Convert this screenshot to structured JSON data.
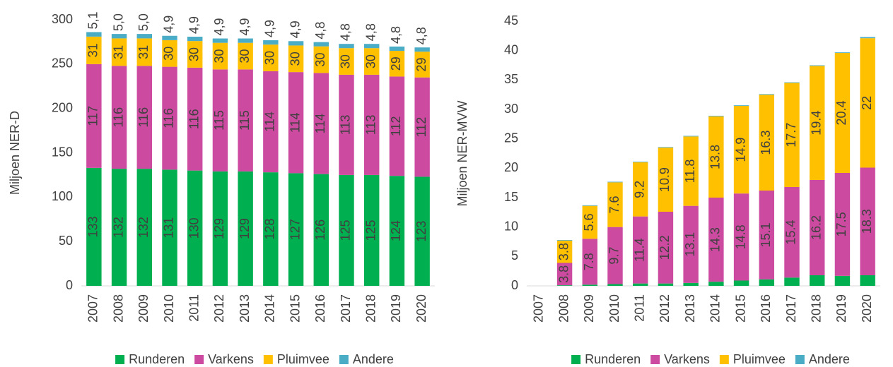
{
  "chart_data": [
    {
      "type": "bar",
      "stacked": true,
      "y_label": "Miljoen NER-D",
      "categories": [
        "2007",
        "2008",
        "2009",
        "2010",
        "2011",
        "2012",
        "2013",
        "2014",
        "2015",
        "2016",
        "2017",
        "2018",
        "2019",
        "2020"
      ],
      "ylim": [
        0,
        300
      ],
      "yticks": [
        0,
        50,
        100,
        150,
        200,
        250,
        300
      ],
      "grid": false,
      "legend": "bottom",
      "series": [
        {
          "name": "Runderen",
          "color": "#00b050",
          "show_labels": true,
          "label_position": "center",
          "values": [
            133,
            132,
            132,
            131,
            130,
            129,
            129,
            128,
            127,
            126,
            125,
            125,
            124,
            123
          ]
        },
        {
          "name": "Varkens",
          "color": "#cc4aa0",
          "show_labels": true,
          "label_position": "center",
          "values": [
            117,
            116,
            116,
            116,
            116,
            115,
            115,
            114,
            114,
            114,
            113,
            113,
            112,
            112
          ]
        },
        {
          "name": "Pluimvee",
          "color": "#ffc000",
          "show_labels": true,
          "label_position": "center",
          "values": [
            31,
            31,
            31,
            30,
            30,
            30,
            30,
            30,
            30,
            30,
            30,
            30,
            29,
            29
          ]
        },
        {
          "name": "Andere",
          "color": "#4bacc6",
          "show_labels": true,
          "label_position": "above",
          "values": [
            5.1,
            5.0,
            5.0,
            4.9,
            4.9,
            4.9,
            4.9,
            4.9,
            4.9,
            4.8,
            4.8,
            4.8,
            4.8,
            4.8
          ],
          "value_labels": [
            "5,1",
            "5,0",
            "5,0",
            "4,9",
            "4,9",
            "4,9",
            "4,9",
            "4,9",
            "4,9",
            "4,8",
            "4,8",
            "4,8",
            "4,8",
            "4,8"
          ]
        }
      ]
    },
    {
      "type": "bar",
      "stacked": true,
      "y_label": "Miljoen NER-MVW",
      "categories": [
        "2007",
        "2008",
        "2009",
        "2010",
        "2011",
        "2012",
        "2013",
        "2014",
        "2015",
        "2016",
        "2017",
        "2018",
        "2019",
        "2020"
      ],
      "ylim": [
        0,
        45
      ],
      "yticks": [
        0,
        5,
        10,
        15,
        20,
        25,
        30,
        35,
        40,
        45
      ],
      "grid": false,
      "legend": "bottom",
      "series": [
        {
          "name": "Runderen",
          "color": "#00b050",
          "show_labels": false,
          "label_position": "center",
          "values": [
            null,
            0.1,
            0.2,
            0.3,
            0.4,
            0.4,
            0.5,
            0.7,
            0.9,
            1.1,
            1.4,
            1.8,
            1.7,
            1.8
          ]
        },
        {
          "name": "Varkens",
          "color": "#cc4aa0",
          "show_labels": true,
          "label_position": "center",
          "values": [
            null,
            3.8,
            7.8,
            9.7,
            11.4,
            12.2,
            13.1,
            14.3,
            14.8,
            15.1,
            15.4,
            16.2,
            17.5,
            18.3
          ]
        },
        {
          "name": "Pluimvee",
          "color": "#ffc000",
          "show_labels": true,
          "label_position": "center",
          "values": [
            null,
            3.8,
            5.6,
            7.6,
            9.2,
            10.9,
            11.8,
            13.8,
            14.9,
            16.3,
            17.7,
            19.4,
            20.4,
            22.0
          ]
        },
        {
          "name": "Andere",
          "color": "#4bacc6",
          "show_labels": false,
          "label_position": "above",
          "values": [
            null,
            0.1,
            0.1,
            0.1,
            0.1,
            0.1,
            0.1,
            0.1,
            0.1,
            0.1,
            0.1,
            0.1,
            0.1,
            0.2
          ]
        }
      ]
    }
  ]
}
